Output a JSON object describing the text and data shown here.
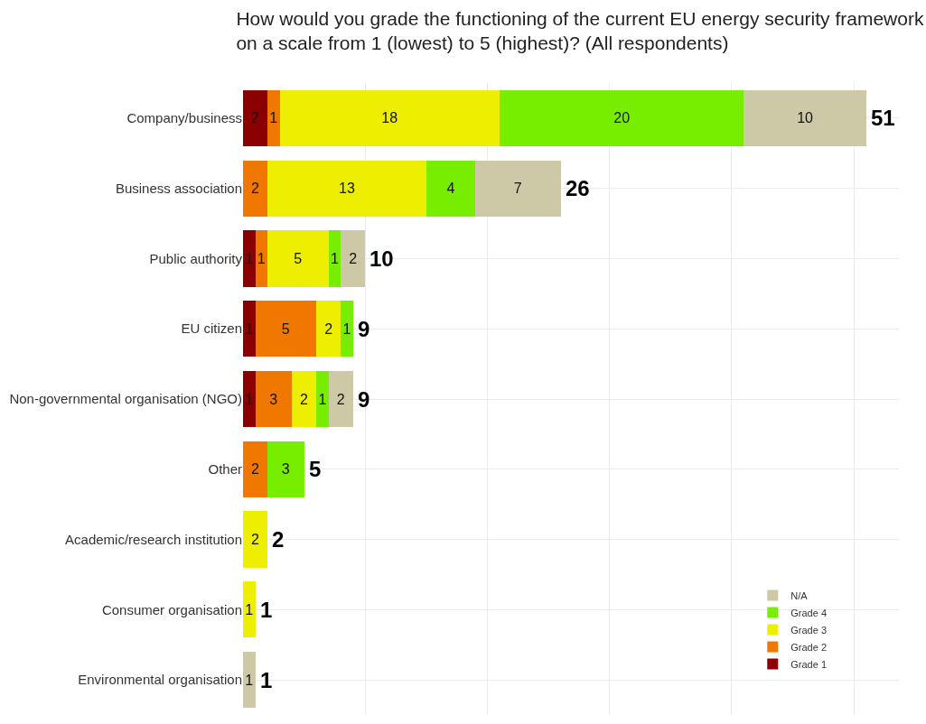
{
  "chart_data": {
    "type": "bar",
    "orientation": "horizontal",
    "stacked": true,
    "title": "How would you grade the functioning of the current EU energy security framework\non a scale from 1 (lowest) to 5 (highest)? (All respondents)",
    "categories": [
      "Company/business",
      "Business association",
      "Public authority",
      "EU citizen",
      "Non-governmental organisation (NGO)",
      "Other",
      "Academic/research institution",
      "Consumer organisation",
      "Environmental organisation"
    ],
    "series": [
      {
        "name": "Grade 1",
        "color": "#8b0000",
        "values": [
          2,
          null,
          1,
          1,
          1,
          null,
          null,
          null,
          null
        ]
      },
      {
        "name": "Grade 2",
        "color": "#f07800",
        "values": [
          1,
          2,
          1,
          5,
          3,
          2,
          null,
          null,
          null
        ]
      },
      {
        "name": "Grade 3",
        "color": "#eeee00",
        "values": [
          18,
          13,
          5,
          2,
          2,
          null,
          2,
          1,
          null
        ]
      },
      {
        "name": "Grade 4",
        "color": "#77ee00",
        "values": [
          20,
          4,
          1,
          1,
          1,
          3,
          null,
          null,
          null
        ]
      },
      {
        "name": "N/A",
        "color": "#cdc8a5",
        "values": [
          10,
          7,
          2,
          null,
          2,
          null,
          null,
          null,
          1
        ]
      }
    ],
    "totals": [
      "51",
      "26",
      "10",
      "9",
      "9",
      "5",
      "2",
      "1",
      "1"
    ],
    "data_labels": true,
    "grid": true,
    "legend": "bottom right",
    "tick_labels": "y"
  }
}
